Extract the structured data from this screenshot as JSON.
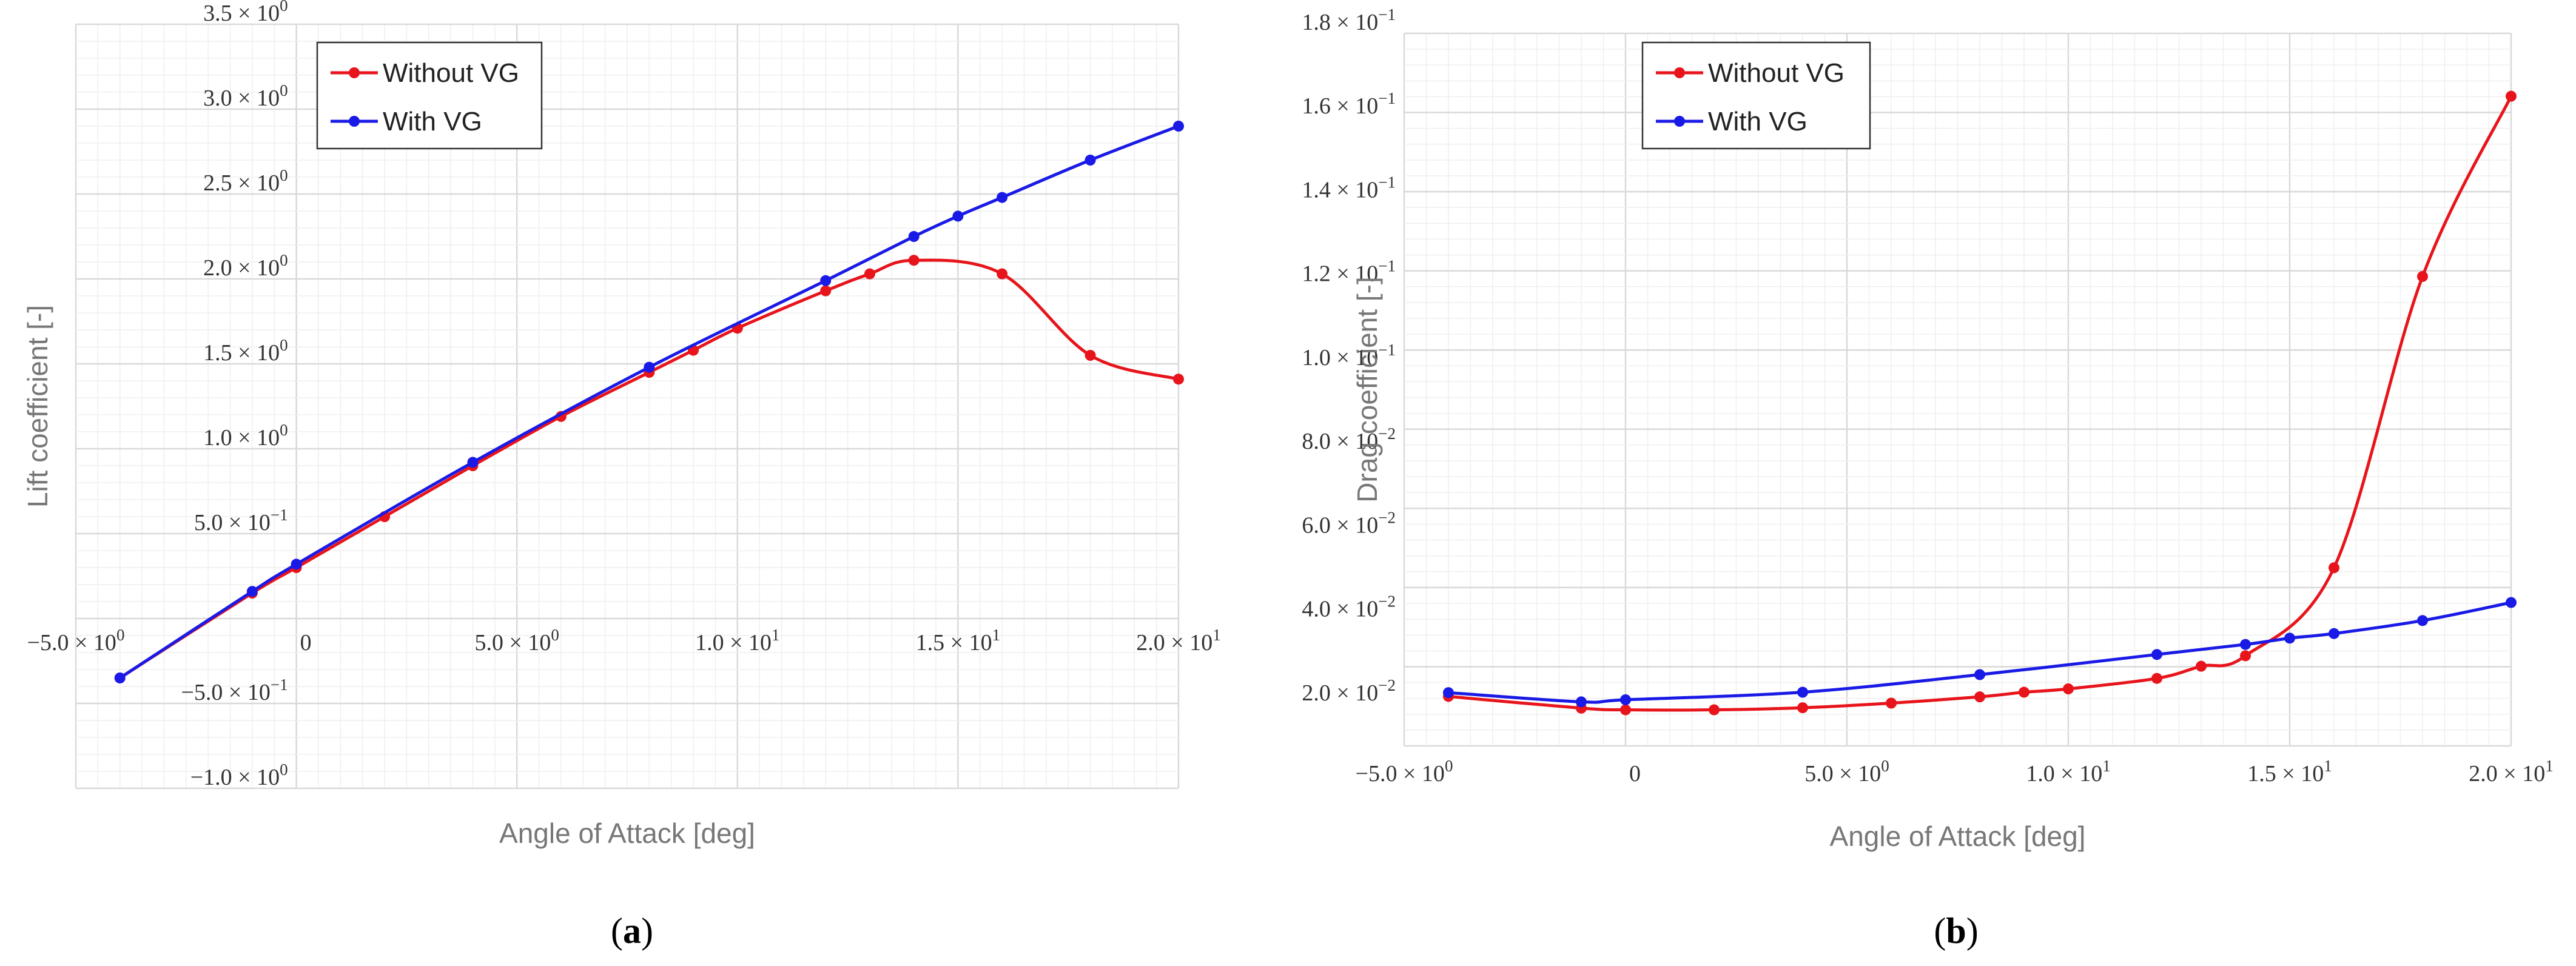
{
  "panels": [
    {
      "caption_prefix": "(",
      "caption_letter": "a",
      "caption_suffix": ")"
    },
    {
      "caption_prefix": "(",
      "caption_letter": "b",
      "caption_suffix": ")"
    }
  ],
  "colors": {
    "without_vg": "#e8141b",
    "with_vg": "#1a1ae6",
    "grid_major": "#d9d9d9",
    "grid_minor": "#efefef",
    "axis_text": "#333333",
    "title_text": "#777777"
  },
  "chart_data": [
    {
      "type": "line",
      "title": "",
      "xlabel": "Angle of Attack [deg]",
      "ylabel": "Lift coefficient [-]",
      "xlim": [
        -5,
        20
      ],
      "ylim": [
        -1.0,
        3.5
      ],
      "grid": true,
      "legend_position": "top-left",
      "x_ticks": [
        {
          "value": -5,
          "mant": "−5.0 × 10",
          "exp": "0"
        },
        {
          "value": 0,
          "mant": "0",
          "exp": ""
        },
        {
          "value": 5,
          "mant": "5.0 × 10",
          "exp": "0"
        },
        {
          "value": 10,
          "mant": "1.0 × 10",
          "exp": "1"
        },
        {
          "value": 15,
          "mant": "1.5 × 10",
          "exp": "1"
        },
        {
          "value": 20,
          "mant": "2.0 × 10",
          "exp": "1"
        }
      ],
      "y_ticks": [
        {
          "value": -1.0,
          "mant": "−1.0 × 10",
          "exp": "0"
        },
        {
          "value": -0.5,
          "mant": "−5.0 × 10",
          "exp": "−1"
        },
        {
          "value": 0.5,
          "mant": "5.0 × 10",
          "exp": "−1"
        },
        {
          "value": 1.0,
          "mant": "1.0 × 10",
          "exp": "0"
        },
        {
          "value": 1.5,
          "mant": "1.5 × 10",
          "exp": "0"
        },
        {
          "value": 2.0,
          "mant": "2.0 × 10",
          "exp": "0"
        },
        {
          "value": 2.5,
          "mant": "2.5 × 10",
          "exp": "0"
        },
        {
          "value": 3.0,
          "mant": "3.0 × 10",
          "exp": "0"
        },
        {
          "value": 3.5,
          "mant": "3.5 × 10",
          "exp": "0"
        }
      ],
      "series": [
        {
          "name": "Without VG",
          "color_key": "without_vg",
          "x": [
            -4,
            -1,
            0,
            2,
            4,
            6,
            8,
            9,
            10,
            12,
            13,
            14,
            16,
            18,
            20
          ],
          "y": [
            -0.35,
            0.15,
            0.3,
            0.6,
            0.9,
            1.19,
            1.45,
            1.58,
            1.71,
            1.93,
            2.03,
            2.11,
            2.03,
            1.55,
            1.41
          ]
        },
        {
          "name": "With VG",
          "color_key": "with_vg",
          "x": [
            -4,
            -1,
            0,
            4,
            8,
            12,
            14,
            15,
            16,
            18,
            20
          ],
          "y": [
            -0.35,
            0.16,
            0.32,
            0.92,
            1.48,
            1.99,
            2.25,
            2.37,
            2.48,
            2.7,
            2.9
          ]
        }
      ]
    },
    {
      "type": "line",
      "title": "",
      "xlabel": "Angle of Attack [deg]",
      "ylabel": "Drag coefficient [-]",
      "xlim": [
        -5,
        20
      ],
      "ylim": [
        0.01,
        0.18
      ],
      "grid": true,
      "legend_position": "top-left",
      "x_ticks": [
        {
          "value": -5,
          "mant": "−5.0 × 10",
          "exp": "0"
        },
        {
          "value": 0,
          "mant": "0",
          "exp": ""
        },
        {
          "value": 5,
          "mant": "5.0 × 10",
          "exp": "0"
        },
        {
          "value": 10,
          "mant": "1.0 × 10",
          "exp": "1"
        },
        {
          "value": 15,
          "mant": "1.5 × 10",
          "exp": "1"
        },
        {
          "value": 20,
          "mant": "2.0 × 10",
          "exp": "1"
        }
      ],
      "y_ticks": [
        {
          "value": 0.02,
          "mant": "2.0 × 10",
          "exp": "−2"
        },
        {
          "value": 0.04,
          "mant": "4.0 × 10",
          "exp": "−2"
        },
        {
          "value": 0.06,
          "mant": "6.0 × 10",
          "exp": "−2"
        },
        {
          "value": 0.08,
          "mant": "8.0 × 10",
          "exp": "−2"
        },
        {
          "value": 0.1,
          "mant": "1.0 × 10",
          "exp": "−1"
        },
        {
          "value": 0.12,
          "mant": "1.2 × 10",
          "exp": "−1"
        },
        {
          "value": 0.14,
          "mant": "1.4 × 10",
          "exp": "−1"
        },
        {
          "value": 0.16,
          "mant": "1.6 × 10",
          "exp": "−1"
        },
        {
          "value": 0.18,
          "mant": "1.8 × 10",
          "exp": "−1"
        }
      ],
      "series": [
        {
          "name": "Without VG",
          "color_key": "without_vg",
          "x": [
            -4,
            -1,
            0,
            2,
            4,
            6,
            8,
            9,
            10,
            12,
            13,
            14,
            16,
            18,
            20
          ],
          "y": [
            0.0218,
            0.019,
            0.0186,
            0.0186,
            0.0191,
            0.0202,
            0.0217,
            0.0228,
            0.0236,
            0.0261,
            0.029,
            0.0315,
            0.0525,
            0.122,
            0.165
          ]
        },
        {
          "name": "With VG",
          "color_key": "with_vg",
          "x": [
            -4,
            -1,
            0,
            4,
            8,
            12,
            14,
            15,
            16,
            18,
            20
          ],
          "y": [
            0.0227,
            0.0205,
            0.021,
            0.0228,
            0.027,
            0.0318,
            0.0342,
            0.0357,
            0.0368,
            0.0399,
            0.0442
          ]
        }
      ]
    }
  ]
}
